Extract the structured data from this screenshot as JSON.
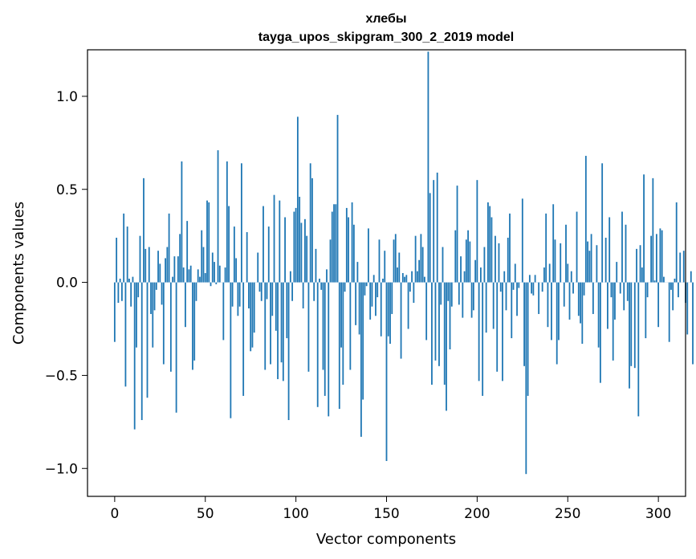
{
  "chart_data": {
    "type": "bar",
    "title": "хлебы",
    "subtitle": "tayga_upos_skipgram_300_2_2019 model",
    "xlabel": "Vector components",
    "ylabel": "Components values",
    "xlim": [
      -15,
      315
    ],
    "ylim": [
      -1.15,
      1.25
    ],
    "x_ticks": [
      0,
      50,
      100,
      150,
      200,
      250,
      300
    ],
    "x_tick_labels": [
      "0",
      "50",
      "100",
      "150",
      "200",
      "250",
      "300"
    ],
    "y_ticks": [
      -1.0,
      -0.5,
      0.0,
      0.5,
      1.0
    ],
    "y_tick_labels": [
      "−1.0",
      "−0.5",
      "0.0",
      "0.5",
      "1.0"
    ],
    "grid": false,
    "bar_color": "#1f77b4",
    "values": [
      -0.32,
      0.24,
      -0.11,
      0.02,
      -0.1,
      0.37,
      -0.56,
      0.3,
      0.02,
      -0.13,
      0.03,
      -0.79,
      -0.35,
      -0.08,
      0.25,
      -0.74,
      0.56,
      0.18,
      -0.62,
      0.19,
      -0.17,
      -0.35,
      -0.15,
      -0.04,
      0.17,
      0.1,
      -0.12,
      -0.44,
      0.13,
      0.19,
      0.37,
      -0.48,
      0.03,
      0.14,
      -0.7,
      0.14,
      0.26,
      0.65,
      0.08,
      -0.24,
      0.33,
      0.07,
      0.09,
      -0.47,
      -0.42,
      -0.1,
      0.07,
      0.03,
      0.28,
      0.19,
      0.05,
      0.44,
      0.43,
      -0.02,
      0.16,
      0.11,
      -0.01,
      0.71,
      0.09,
      0.0,
      -0.31,
      0.08,
      0.65,
      0.41,
      -0.73,
      -0.13,
      0.3,
      0.13,
      -0.18,
      -0.13,
      0.64,
      -0.61,
      0.0,
      0.27,
      -0.14,
      -0.37,
      -0.35,
      -0.27,
      0.0,
      0.16,
      -0.05,
      -0.1,
      0.41,
      -0.47,
      -0.09,
      0.3,
      -0.44,
      -0.18,
      0.47,
      -0.26,
      -0.52,
      0.44,
      -0.43,
      -0.53,
      0.35,
      -0.3,
      -0.74,
      0.06,
      -0.1,
      0.38,
      0.4,
      0.89,
      0.46,
      0.32,
      -0.14,
      0.34,
      0.25,
      -0.48,
      0.64,
      0.56,
      -0.1,
      0.18,
      -0.67,
      0.02,
      -0.04,
      -0.47,
      -0.61,
      0.07,
      -0.72,
      0.23,
      0.38,
      0.42,
      0.42,
      0.9,
      -0.68,
      -0.35,
      -0.55,
      -0.05,
      0.4,
      0.35,
      -0.47,
      0.43,
      0.31,
      -0.23,
      0.11,
      -0.28,
      -0.83,
      -0.63,
      -0.07,
      -0.02,
      0.29,
      -0.2,
      -0.13,
      0.04,
      -0.18,
      -0.08,
      0.23,
      -0.29,
      0.02,
      0.17,
      -0.96,
      -0.29,
      -0.33,
      -0.17,
      0.23,
      0.26,
      0.08,
      0.16,
      -0.41,
      0.05,
      0.03,
      0.04,
      -0.25,
      -0.05,
      0.06,
      -0.11,
      0.25,
      0.06,
      0.12,
      0.26,
      0.19,
      0.03,
      -0.31,
      1.24,
      0.48,
      -0.55,
      0.55,
      -0.42,
      0.59,
      -0.45,
      -0.12,
      0.19,
      -0.55,
      -0.69,
      -0.1,
      -0.36,
      -0.13,
      0.0,
      0.28,
      0.52,
      -0.12,
      0.14,
      -0.19,
      0.06,
      0.23,
      0.28,
      0.22,
      -0.19,
      -0.15,
      0.12,
      0.55,
      -0.53,
      0.08,
      -0.61,
      0.19,
      -0.27,
      0.43,
      0.41,
      0.35,
      -0.25,
      0.25,
      -0.48,
      0.21,
      -0.05,
      -0.53,
      0.06,
      -0.15,
      0.24,
      0.37,
      -0.3,
      -0.04,
      0.1,
      -0.18,
      -0.03,
      0.0,
      0.45,
      -0.45,
      -1.03,
      -0.61,
      0.04,
      -0.06,
      -0.07,
      0.04,
      0.0,
      -0.17,
      0.0,
      -0.05,
      0.08,
      0.37,
      -0.24,
      0.1,
      -0.31,
      0.42,
      0.23,
      -0.44,
      -0.31,
      0.21,
      0.0,
      -0.13,
      0.31,
      0.1,
      -0.2,
      0.06,
      -0.06,
      0.0,
      0.38,
      -0.18,
      -0.22,
      -0.33,
      -0.07,
      0.68,
      0.22,
      0.17,
      0.26,
      -0.17,
      0.0,
      0.2,
      -0.35,
      -0.54,
      0.64,
      0.0,
      0.24,
      -0.25,
      0.35,
      -0.08,
      -0.42,
      -0.2,
      0.11,
      0.0,
      -0.06,
      0.38,
      -0.15,
      0.31,
      -0.1,
      -0.57,
      -0.45,
      0.0,
      -0.46,
      0.18,
      -0.72,
      0.2,
      0.08,
      0.58,
      -0.3,
      -0.08,
      0.0,
      0.25,
      0.56,
      0.01,
      0.26,
      -0.24,
      0.29,
      0.28,
      0.03,
      0.0,
      0.0,
      -0.32,
      -0.04,
      -0.15,
      0.02,
      0.43,
      -0.08,
      0.16,
      0.0,
      0.17,
      -0.11,
      -0.28,
      0.0,
      0.06,
      -0.44
    ]
  }
}
